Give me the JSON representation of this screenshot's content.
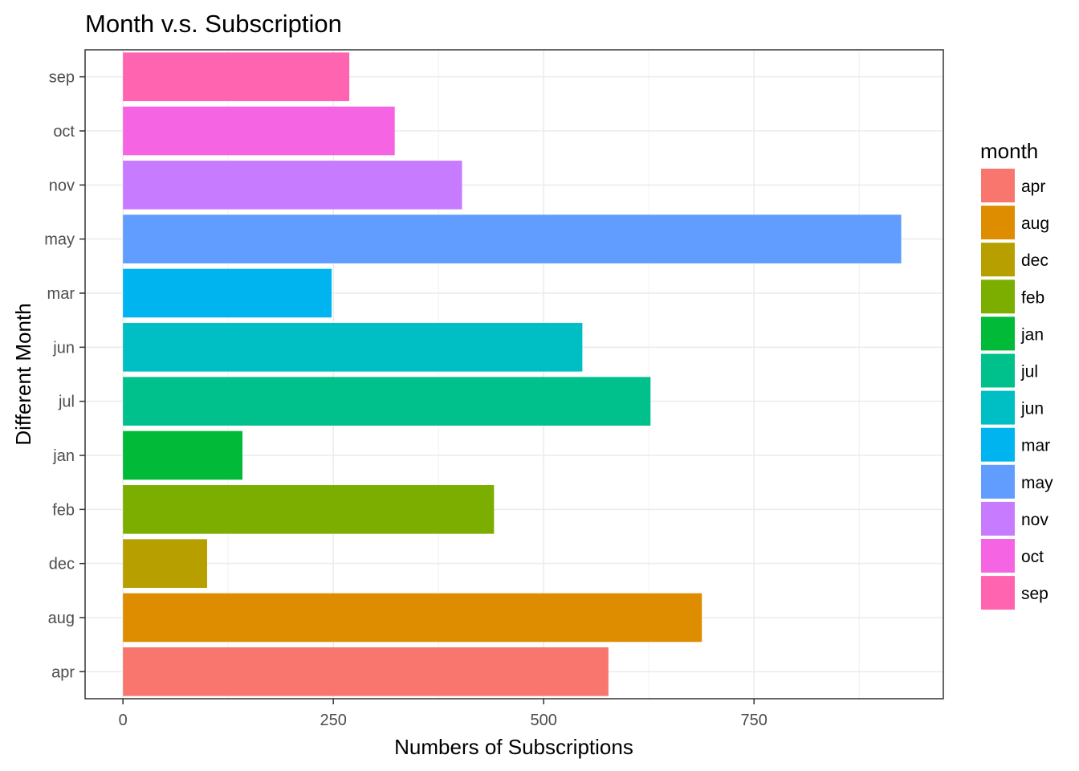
{
  "chart_data": {
    "type": "bar",
    "orientation": "horizontal",
    "title": "Month v.s. Subscription",
    "xlabel": "Numbers of Subscriptions",
    "ylabel": "Different Month",
    "xlim": [
      -45,
      975
    ],
    "xticks": [
      0,
      250,
      500,
      750
    ],
    "grid": true,
    "legend_position": "right",
    "legend_title": "month",
    "categories": [
      "apr",
      "aug",
      "dec",
      "feb",
      "jan",
      "jul",
      "jun",
      "mar",
      "may",
      "nov",
      "oct",
      "sep"
    ],
    "values": [
      577,
      688,
      100,
      441,
      142,
      627,
      546,
      248,
      925,
      403,
      323,
      269
    ],
    "colors": [
      "#F8766D",
      "#DE8C00",
      "#B79F00",
      "#7CAE00",
      "#00BA38",
      "#00C08B",
      "#00BFC4",
      "#00B4F0",
      "#619CFF",
      "#C77CFF",
      "#F564E3",
      "#FF64B0"
    ]
  }
}
